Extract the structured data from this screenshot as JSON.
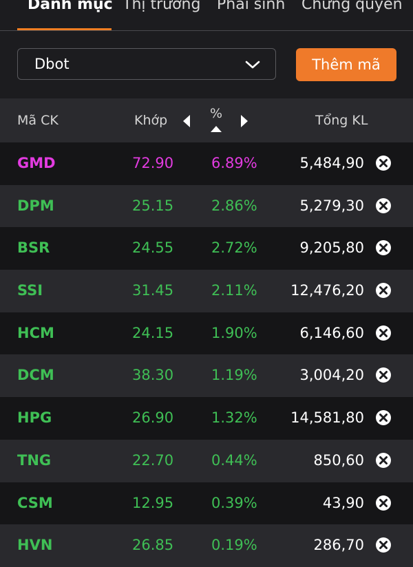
{
  "tabs": [
    {
      "label": "Danh mục",
      "active": true
    },
    {
      "label": "Thị trường",
      "active": false
    },
    {
      "label": "Phái sinh",
      "active": false
    },
    {
      "label": "Chứng quyền",
      "active": false
    }
  ],
  "watchlist_select": {
    "value": "Dbot",
    "icon": "chevron-down-icon"
  },
  "add_button": {
    "label": "Thêm mã"
  },
  "table_header": {
    "symbol": "Mã CK",
    "price": "Khớp",
    "percent": "%",
    "volume": "Tổng KL"
  },
  "colors": {
    "accent": "#ef7a2a",
    "up": "#3fbf55",
    "ceiling": "#e23be0",
    "background": "#1c1c1f"
  },
  "rows": [
    {
      "symbol": "GMD",
      "price": "72.90",
      "percent": "6.89%",
      "volume": "5,484,90",
      "status": "ceiling"
    },
    {
      "symbol": "DPM",
      "price": "25.15",
      "percent": "2.86%",
      "volume": "5,279,30",
      "status": "up"
    },
    {
      "symbol": "BSR",
      "price": "24.55",
      "percent": "2.72%",
      "volume": "9,205,80",
      "status": "up"
    },
    {
      "symbol": "SSI",
      "price": "31.45",
      "percent": "2.11%",
      "volume": "12,476,20",
      "status": "up"
    },
    {
      "symbol": "HCM",
      "price": "24.15",
      "percent": "1.90%",
      "volume": "6,146,60",
      "status": "up"
    },
    {
      "symbol": "DCM",
      "price": "38.30",
      "percent": "1.19%",
      "volume": "3,004,20",
      "status": "up"
    },
    {
      "symbol": "HPG",
      "price": "26.90",
      "percent": "1.32%",
      "volume": "14,581,80",
      "status": "up"
    },
    {
      "symbol": "TNG",
      "price": "22.70",
      "percent": "0.44%",
      "volume": "850,60",
      "status": "up"
    },
    {
      "symbol": "CSM",
      "price": "12.95",
      "percent": "0.39%",
      "volume": "43,90",
      "status": "up"
    },
    {
      "symbol": "HVN",
      "price": "26.85",
      "percent": "0.19%",
      "volume": "286,70",
      "status": "up"
    }
  ]
}
